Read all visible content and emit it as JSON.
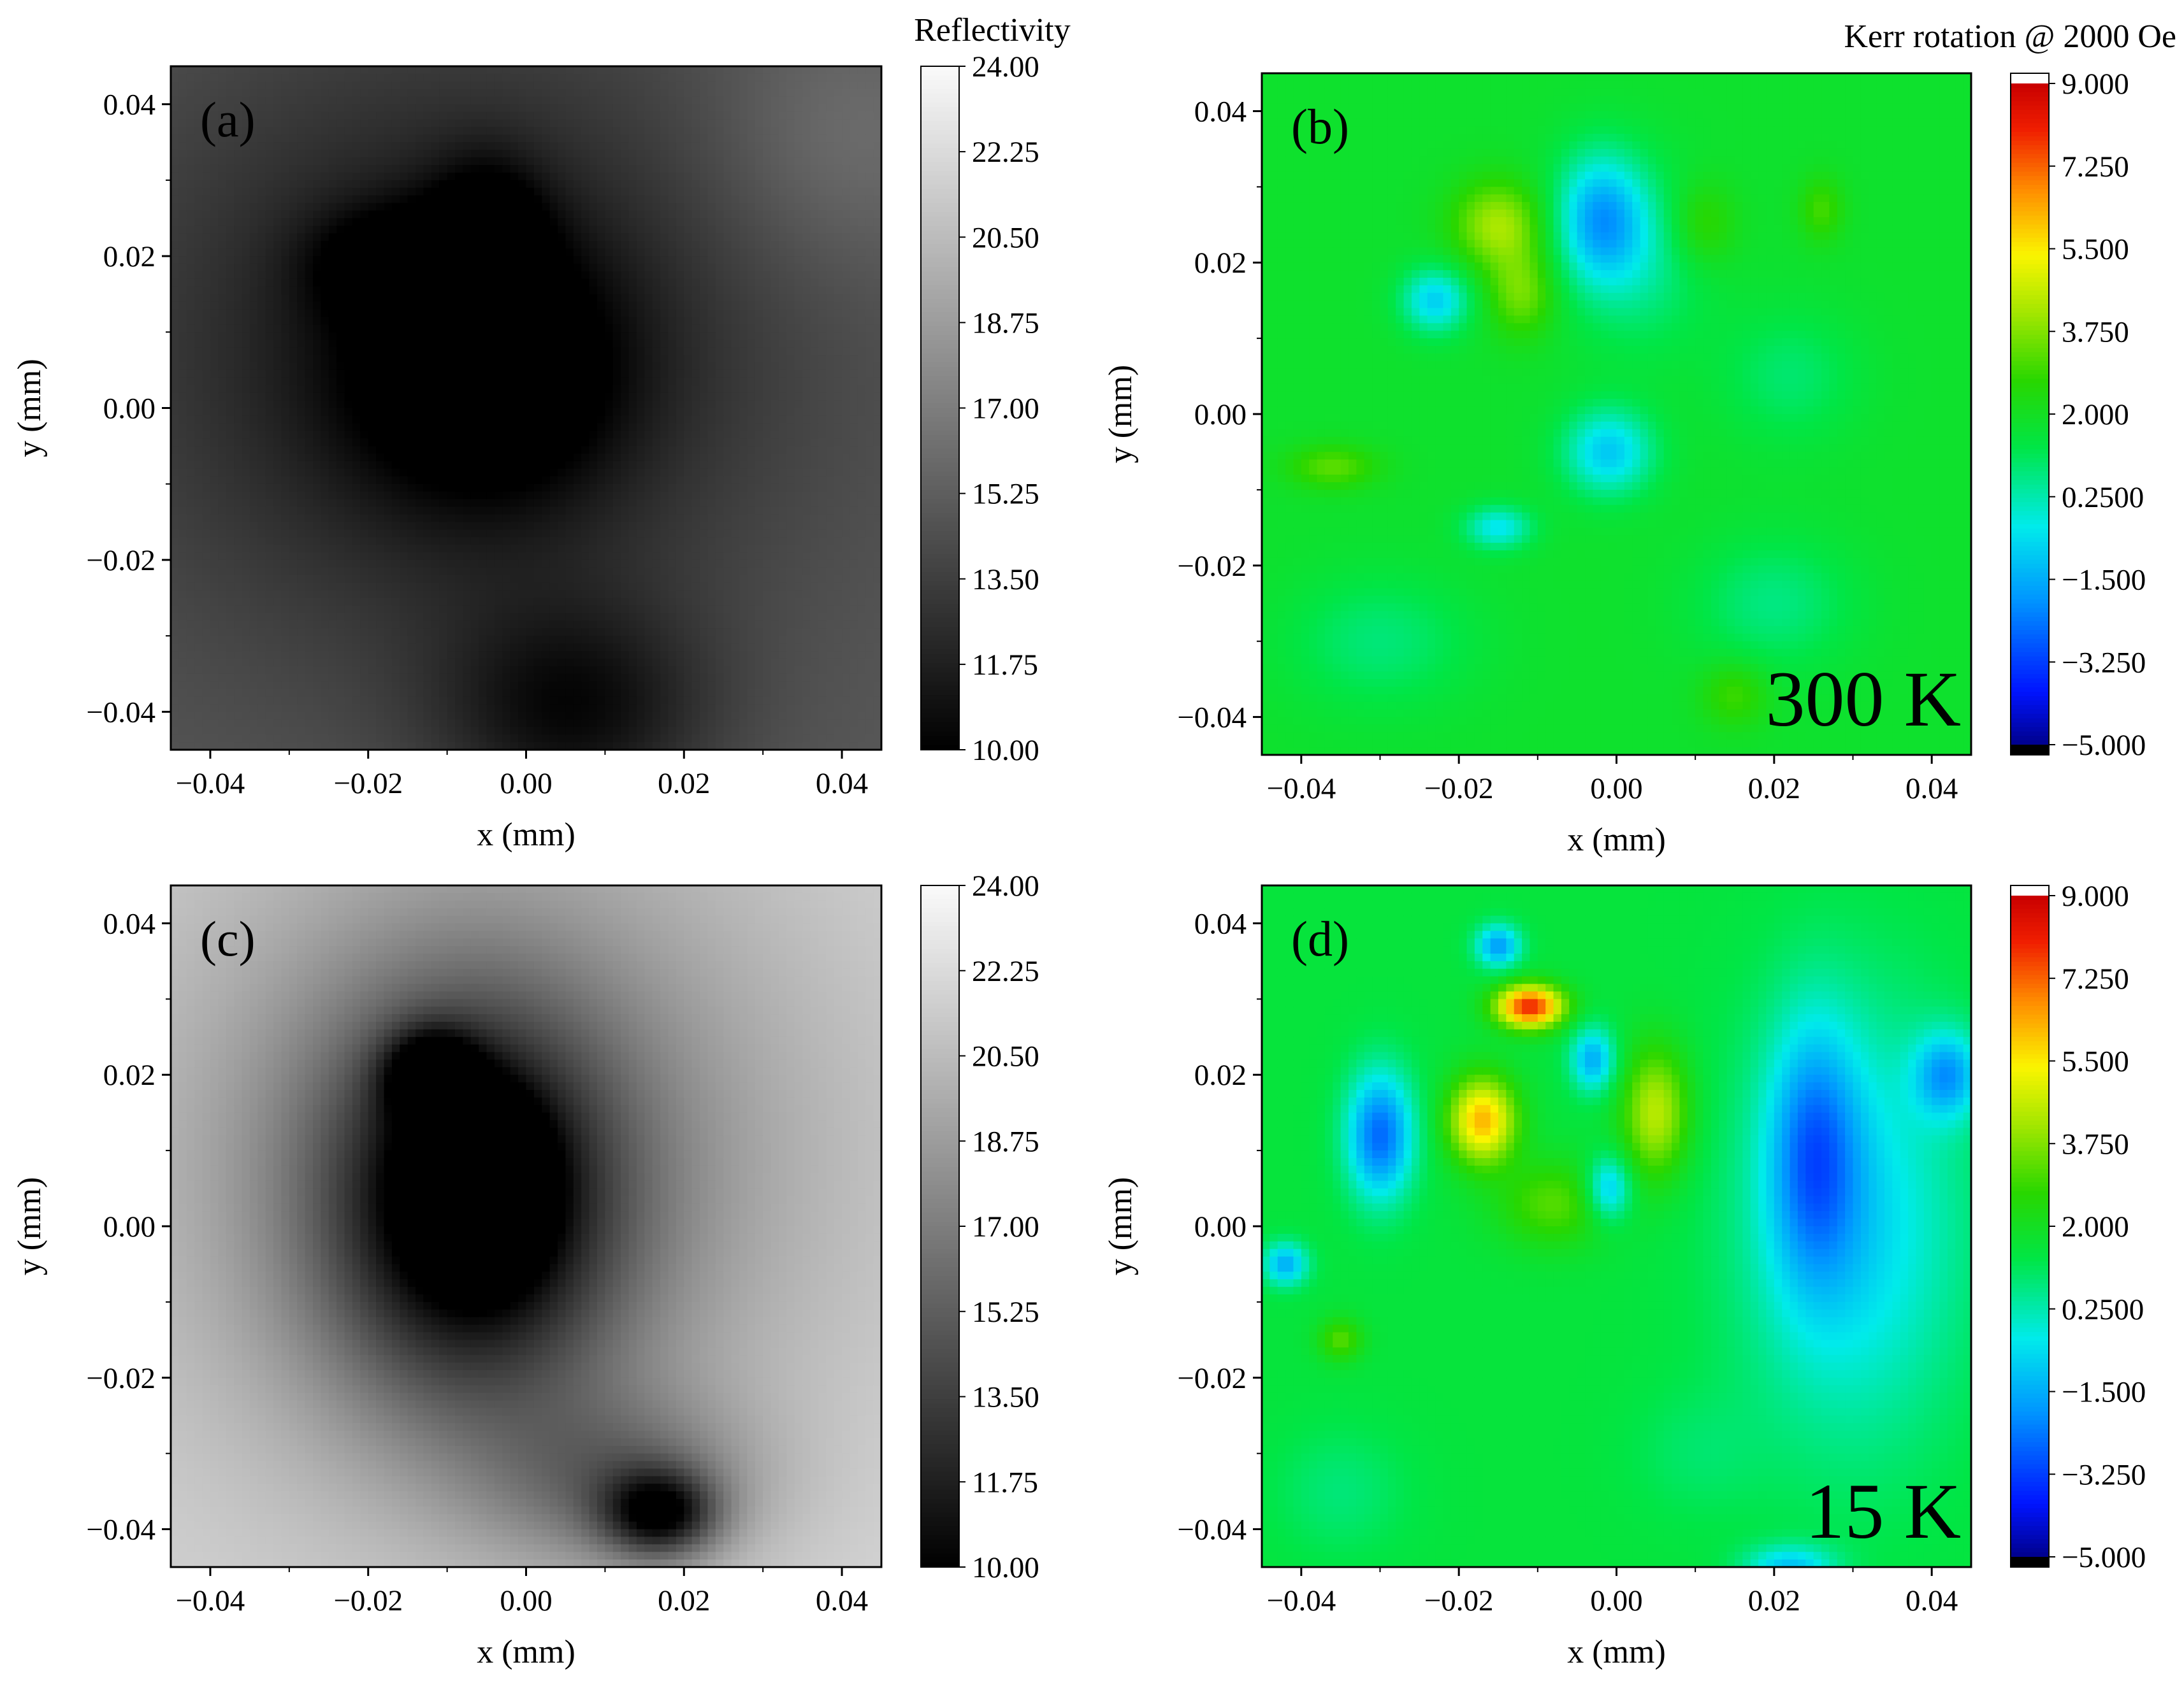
{
  "chart_data": [
    {
      "type": "heatmap",
      "panel": "(a)",
      "quantity": "Reflectivity",
      "xlabel": "x (mm)",
      "ylabel": "y (mm)",
      "xlim": [
        -0.045,
        0.045
      ],
      "ylim": [
        -0.045,
        0.045
      ],
      "xticks": [
        -0.04,
        -0.02,
        0.0,
        0.02,
        0.04
      ],
      "xtick_labels": [
        "−0.04",
        "−0.02",
        "0.00",
        "0.02",
        "0.04"
      ],
      "yticks": [
        -0.04,
        -0.02,
        0.0,
        0.02,
        0.04
      ],
      "ytick_labels": [
        "−0.04",
        "−0.02",
        "0.00",
        "0.02",
        "0.04"
      ],
      "colormap": "gray",
      "colorbar": {
        "title": "Reflectivity",
        "range": [
          10.0,
          24.0
        ],
        "ticks": [
          24.0,
          22.25,
          20.5,
          18.75,
          17.0,
          15.25,
          13.5,
          11.75,
          10.0
        ],
        "tick_labels": [
          "24.00",
          "22.25",
          "20.50",
          "18.75",
          "17.00",
          "15.25",
          "13.50",
          "11.75",
          "10.00"
        ]
      },
      "background_level": 15.0,
      "features": [
        {
          "x": -0.005,
          "y": 0.005,
          "level": 10.2,
          "sx": 0.012,
          "sy": 0.012
        },
        {
          "x": -0.017,
          "y": 0.019,
          "level": 11.5,
          "sx": 0.007,
          "sy": 0.005
        },
        {
          "x": -0.005,
          "y": 0.022,
          "level": 10.8,
          "sx": 0.005,
          "sy": 0.007
        },
        {
          "x": -0.01,
          "y": 0.008,
          "level": 11.2,
          "sx": 0.03,
          "sy": 0.03
        },
        {
          "x": 0.006,
          "y": -0.04,
          "level": 11.2,
          "sx": 0.012,
          "sy": 0.01
        },
        {
          "x": 0.04,
          "y": 0.035,
          "level": 16.5,
          "sx": 0.012,
          "sy": 0.012
        }
      ]
    },
    {
      "type": "heatmap",
      "panel": "(b)",
      "quantity": "Kerr rotation @ 2000 Oe",
      "annotation": "300 K",
      "xlabel": "x (mm)",
      "ylabel": "y (mm)",
      "xlim": [
        -0.045,
        0.045
      ],
      "ylim": [
        -0.045,
        0.045
      ],
      "xticks": [
        -0.04,
        -0.02,
        0.0,
        0.02,
        0.04
      ],
      "xtick_labels": [
        "−0.04",
        "−0.02",
        "0.00",
        "0.02",
        "0.04"
      ],
      "yticks": [
        -0.04,
        -0.02,
        0.0,
        0.02,
        0.04
      ],
      "ytick_labels": [
        "−0.04",
        "−0.02",
        "0.00",
        "0.02",
        "0.04"
      ],
      "colormap": "rainbow",
      "colorbar": {
        "title": "Kerr rotation @ 2000 Oe",
        "range": [
          -5.0,
          9.0
        ],
        "ticks": [
          9.0,
          7.25,
          5.5,
          3.75,
          2.0,
          0.25,
          -1.5,
          -3.25,
          -5.0
        ],
        "tick_labels": [
          "9.000",
          "7.250",
          "5.500",
          "3.750",
          "2.000",
          "0.2500",
          "−1.500",
          "−3.250",
          "−5.000"
        ]
      },
      "background_level": 1.8,
      "features": [
        {
          "x": -0.015,
          "y": 0.025,
          "level": 4.2,
          "sx": 0.004,
          "sy": 0.004
        },
        {
          "x": -0.012,
          "y": 0.016,
          "level": 3.6,
          "sx": 0.003,
          "sy": 0.004
        },
        {
          "x": -0.002,
          "y": 0.026,
          "level": -1.4,
          "sx": 0.004,
          "sy": 0.006
        },
        {
          "x": -0.023,
          "y": 0.015,
          "level": -0.9,
          "sx": 0.003,
          "sy": 0.003
        },
        {
          "x": -0.001,
          "y": -0.005,
          "level": -1.0,
          "sx": 0.004,
          "sy": 0.004
        },
        {
          "x": -0.015,
          "y": -0.015,
          "level": -0.5,
          "sx": 0.003,
          "sy": 0.002
        },
        {
          "x": 0.011,
          "y": 0.025,
          "level": 3.0,
          "sx": 0.003,
          "sy": 0.004
        },
        {
          "x": 0.026,
          "y": 0.027,
          "level": 3.0,
          "sx": 0.002,
          "sy": 0.003
        },
        {
          "x": -0.036,
          "y": -0.007,
          "level": 3.3,
          "sx": 0.004,
          "sy": 0.002
        },
        {
          "x": 0.015,
          "y": -0.037,
          "level": 3.0,
          "sx": 0.003,
          "sy": 0.003
        },
        {
          "x": 0.003,
          "y": 0.02,
          "level": 0.6,
          "sx": 0.006,
          "sy": 0.008
        },
        {
          "x": 0.022,
          "y": 0.005,
          "level": 0.9,
          "sx": 0.006,
          "sy": 0.006
        },
        {
          "x": -0.03,
          "y": -0.03,
          "level": 0.8,
          "sx": 0.008,
          "sy": 0.006
        },
        {
          "x": 0.02,
          "y": -0.025,
          "level": 0.7,
          "sx": 0.007,
          "sy": 0.006
        }
      ]
    },
    {
      "type": "heatmap",
      "panel": "(c)",
      "quantity": "Reflectivity",
      "xlabel": "x (mm)",
      "ylabel": "y (mm)",
      "xlim": [
        -0.045,
        0.045
      ],
      "ylim": [
        -0.045,
        0.045
      ],
      "xticks": [
        -0.04,
        -0.02,
        0.0,
        0.02,
        0.04
      ],
      "xtick_labels": [
        "−0.04",
        "−0.02",
        "0.00",
        "0.02",
        "0.04"
      ],
      "yticks": [
        -0.04,
        -0.02,
        0.0,
        0.02,
        0.04
      ],
      "ytick_labels": [
        "−0.04",
        "−0.02",
        "0.00",
        "0.02",
        "0.04"
      ],
      "colormap": "gray",
      "colorbar": {
        "title": "Reflectivity",
        "range": [
          10.0,
          24.0
        ],
        "ticks": [
          24.0,
          22.25,
          20.5,
          18.75,
          17.0,
          15.25,
          13.5,
          11.75,
          10.0
        ],
        "tick_labels": [
          "24.00",
          "22.25",
          "20.50",
          "18.75",
          "17.00",
          "15.25",
          "13.50",
          "11.75",
          "10.00"
        ]
      },
      "background_level": 22.0,
      "features": [
        {
          "x": -0.007,
          "y": 0.002,
          "level": 12.0,
          "sx": 0.013,
          "sy": 0.018
        },
        {
          "x": -0.006,
          "y": 0.006,
          "level": 10.8,
          "sx": 0.005,
          "sy": 0.007
        },
        {
          "x": -0.012,
          "y": 0.02,
          "level": 14.5,
          "sx": 0.004,
          "sy": 0.004
        },
        {
          "x": -0.005,
          "y": 0.01,
          "level": 17.0,
          "sx": 0.03,
          "sy": 0.032
        },
        {
          "x": 0.017,
          "y": -0.038,
          "level": 13.5,
          "sx": 0.005,
          "sy": 0.004
        },
        {
          "x": 0.012,
          "y": -0.034,
          "level": 17.5,
          "sx": 0.012,
          "sy": 0.008
        }
      ]
    },
    {
      "type": "heatmap",
      "panel": "(d)",
      "quantity": "Kerr rotation @ 2000 Oe",
      "annotation": "15 K",
      "xlabel": "x (mm)",
      "ylabel": "y (mm)",
      "xlim": [
        -0.045,
        0.045
      ],
      "ylim": [
        -0.045,
        0.045
      ],
      "xticks": [
        -0.04,
        -0.02,
        0.0,
        0.02,
        0.04
      ],
      "xtick_labels": [
        "−0.04",
        "−0.02",
        "0.00",
        "0.02",
        "0.04"
      ],
      "yticks": [
        -0.04,
        -0.02,
        0.0,
        0.02,
        0.04
      ],
      "ytick_labels": [
        "−0.04",
        "−0.02",
        "0.00",
        "0.02",
        "0.04"
      ],
      "colormap": "rainbow",
      "colorbar": {
        "title": "Kerr rotation @ 2000 Oe",
        "range": [
          -5.0,
          9.0
        ],
        "ticks": [
          9.0,
          7.25,
          5.5,
          3.75,
          2.0,
          0.25,
          -1.5,
          -3.25,
          -5.0
        ],
        "tick_labels": [
          "9.000",
          "7.250",
          "5.500",
          "3.750",
          "2.000",
          "0.2500",
          "−1.500",
          "−3.250",
          "−5.000"
        ]
      },
      "background_level": 1.5,
      "features": [
        {
          "x": -0.011,
          "y": 0.029,
          "level": 8.0,
          "sx": 0.003,
          "sy": 0.002
        },
        {
          "x": -0.017,
          "y": 0.014,
          "level": 6.2,
          "sx": 0.003,
          "sy": 0.004
        },
        {
          "x": 0.005,
          "y": 0.015,
          "level": 4.5,
          "sx": 0.003,
          "sy": 0.006
        },
        {
          "x": -0.008,
          "y": 0.003,
          "level": 3.2,
          "sx": 0.005,
          "sy": 0.004
        },
        {
          "x": -0.03,
          "y": 0.012,
          "level": -2.6,
          "sx": 0.003,
          "sy": 0.006
        },
        {
          "x": -0.015,
          "y": 0.037,
          "level": -1.8,
          "sx": 0.002,
          "sy": 0.002
        },
        {
          "x": -0.003,
          "y": 0.022,
          "level": -1.5,
          "sx": 0.002,
          "sy": 0.003
        },
        {
          "x": -0.001,
          "y": 0.005,
          "level": -1.3,
          "sx": 0.002,
          "sy": 0.003
        },
        {
          "x": -0.042,
          "y": -0.005,
          "level": -1.5,
          "sx": 0.002,
          "sy": 0.002
        },
        {
          "x": 0.025,
          "y": 0.01,
          "level": -1.4,
          "sx": 0.004,
          "sy": 0.012
        },
        {
          "x": 0.042,
          "y": 0.02,
          "level": -1.4,
          "sx": 0.003,
          "sy": 0.004
        },
        {
          "x": 0.022,
          "y": -0.045,
          "level": -1.0,
          "sx": 0.004,
          "sy": 0.002
        },
        {
          "x": 0.03,
          "y": 0.0,
          "level": -0.8,
          "sx": 0.01,
          "sy": 0.02
        },
        {
          "x": -0.035,
          "y": -0.015,
          "level": 3.2,
          "sx": 0.002,
          "sy": 0.002
        },
        {
          "x": 0.01,
          "y": -0.03,
          "level": 1.0,
          "sx": 0.006,
          "sy": 0.006
        },
        {
          "x": -0.035,
          "y": -0.035,
          "level": 0.8,
          "sx": 0.006,
          "sy": 0.006
        }
      ]
    }
  ]
}
